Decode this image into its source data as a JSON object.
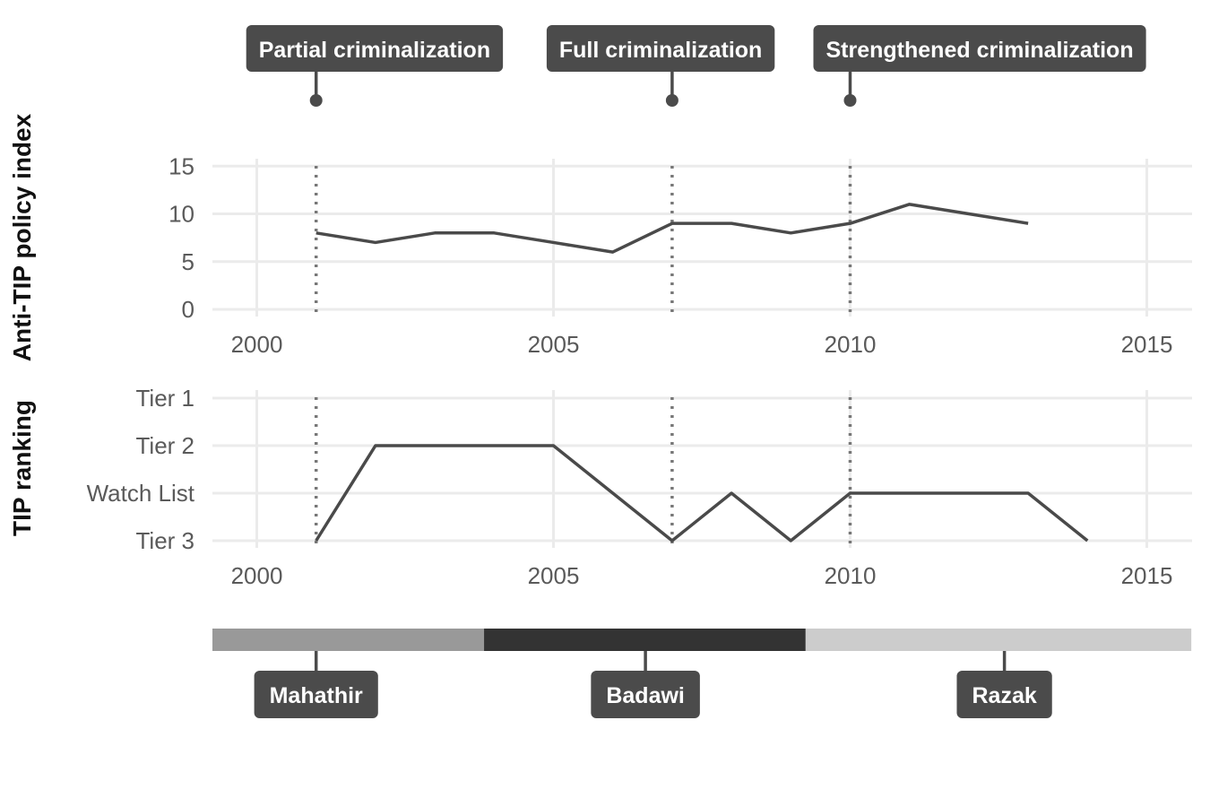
{
  "chart_data": [
    {
      "type": "line",
      "ylabel": "Anti-TIP policy index",
      "xlim": [
        1999.5,
        2015.7
      ],
      "ylim": [
        0,
        15
      ],
      "x_ticks": [
        "2000",
        "2005",
        "2010",
        "2015"
      ],
      "y_ticks": [
        "0",
        "5",
        "10",
        "15"
      ],
      "series": [
        {
          "x": [
            2001,
            2002,
            2003,
            2004,
            2005,
            2006,
            2007,
            2008,
            2009,
            2010,
            2011,
            2012,
            2013
          ],
          "values": [
            8,
            7,
            8,
            8,
            7,
            6,
            9,
            9,
            8,
            9,
            11,
            10,
            9
          ]
        }
      ],
      "grid": true
    },
    {
      "type": "line",
      "ylabel": "TIP ranking",
      "xlim": [
        1999.5,
        2015.7
      ],
      "x_ticks": [
        "2000",
        "2005",
        "2010",
        "2015"
      ],
      "y_categories": [
        "Tier 3",
        "Watch List",
        "Tier 2",
        "Tier 1"
      ],
      "series": [
        {
          "x": [
            2001,
            2002,
            2003,
            2004,
            2005,
            2006,
            2007,
            2008,
            2009,
            2010,
            2011,
            2012,
            2013,
            2014
          ],
          "values": [
            "Tier 3",
            "Tier 2",
            "Tier 2",
            "Tier 2",
            "Tier 2",
            "Watch List",
            "Tier 3",
            "Watch List",
            "Tier 3",
            "Watch List",
            "Watch List",
            "Watch List",
            "Watch List",
            "Tier 3"
          ]
        }
      ],
      "grid": true
    }
  ],
  "events": [
    {
      "year": 2001,
      "label": "Partial criminalization"
    },
    {
      "year": 2007,
      "label": "Full criminalization"
    },
    {
      "year": 2010,
      "label": "Strengthened criminalization"
    }
  ],
  "leaders": [
    {
      "name": "Mahathir",
      "start": 1999.25,
      "end": 2003.83,
      "color": "#999999"
    },
    {
      "name": "Badawi",
      "start": 2003.83,
      "end": 2009.25,
      "color": "#333333"
    },
    {
      "name": "Razak",
      "start": 2009.25,
      "end": 2015.75,
      "color": "#cccccc"
    }
  ]
}
